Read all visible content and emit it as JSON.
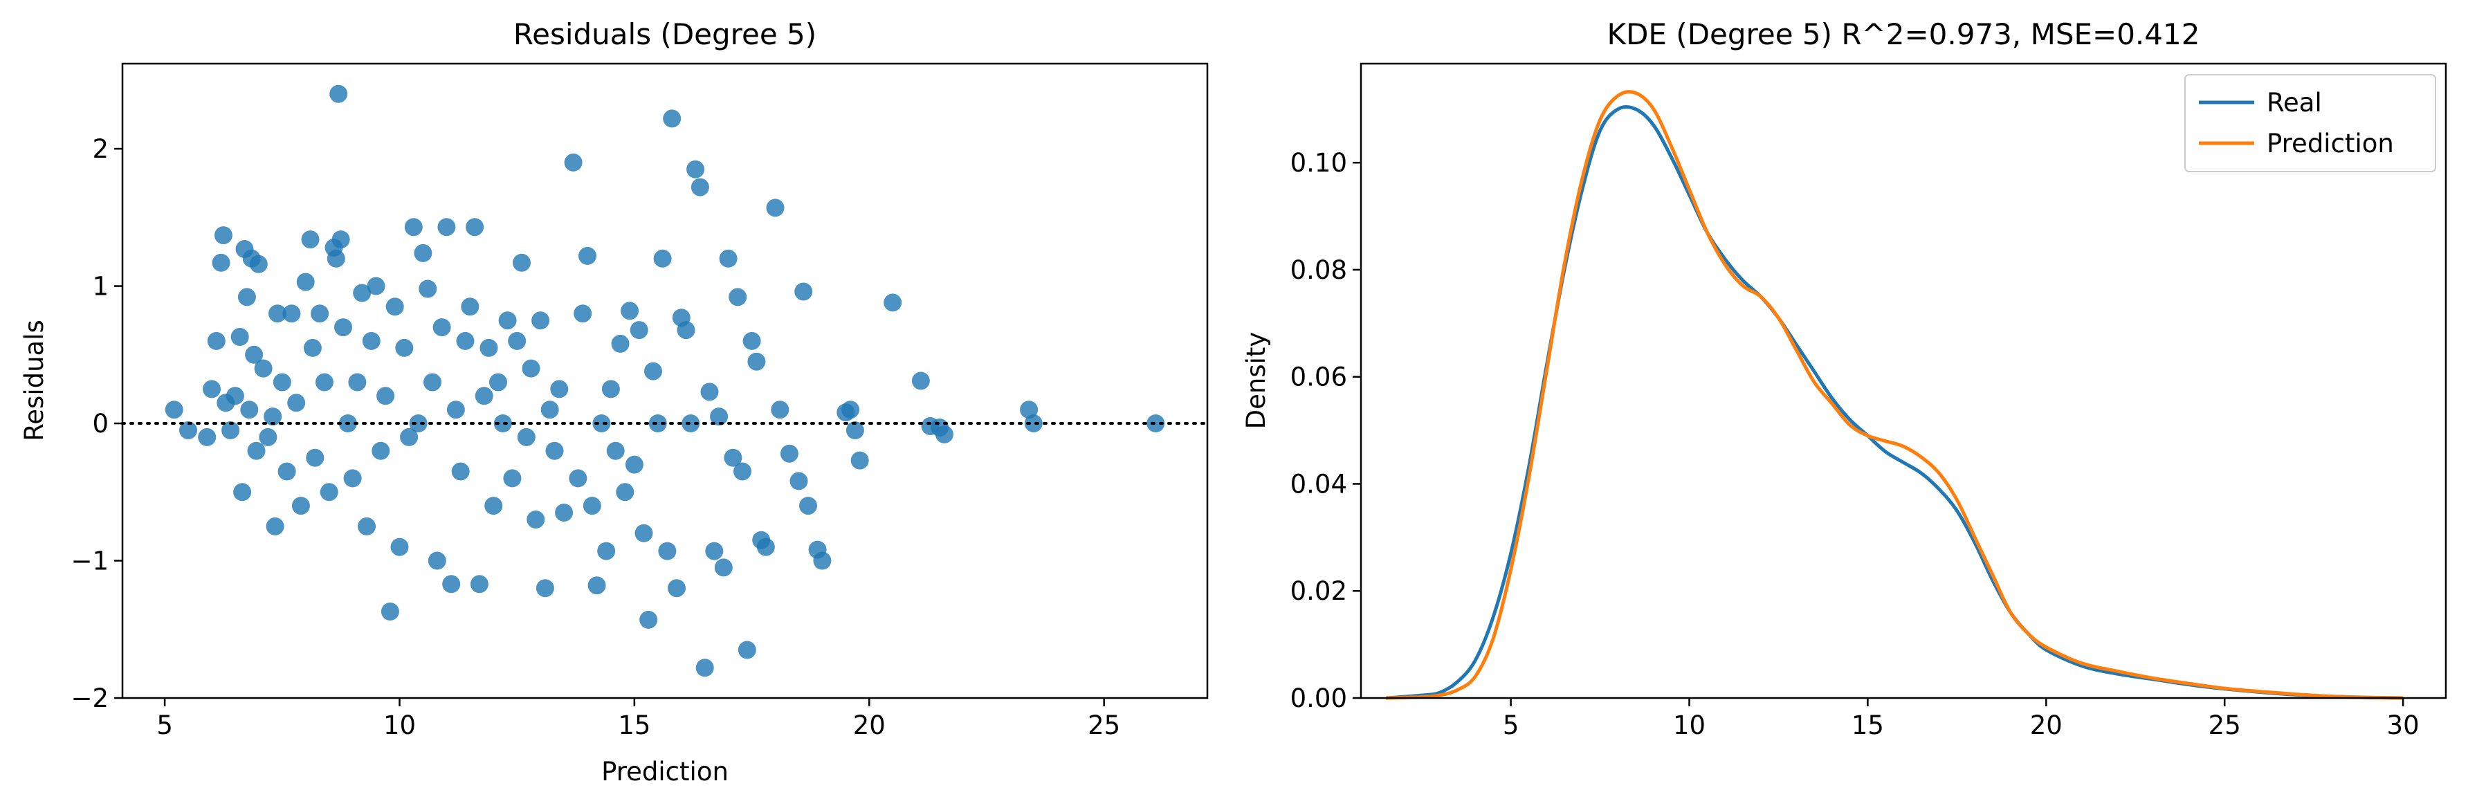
{
  "chart_data": [
    {
      "type": "scatter",
      "title": "Residuals (Degree 5)",
      "xlabel": "Prediction",
      "ylabel": "Residuals",
      "xlim": [
        4.1,
        27.2
      ],
      "ylim": [
        -2.0,
        2.62
      ],
      "xticks": [
        5,
        10,
        15,
        20,
        25
      ],
      "xtick_labels": [
        "5",
        "10",
        "15",
        "20",
        "25"
      ],
      "yticks": [
        -2,
        -1,
        0,
        1,
        2
      ],
      "ytick_labels": [
        "−2",
        "−1",
        "0",
        "1",
        "2"
      ],
      "reference_line": {
        "y": 0,
        "style": "dotted",
        "color": "#000000"
      },
      "marker_color": "#1f77b4",
      "grid": false,
      "points": [
        [
          5.2,
          0.1
        ],
        [
          5.5,
          -0.05
        ],
        [
          5.9,
          -0.1
        ],
        [
          6.0,
          0.25
        ],
        [
          6.1,
          0.6
        ],
        [
          6.2,
          1.17
        ],
        [
          6.25,
          1.37
        ],
        [
          6.3,
          0.15
        ],
        [
          6.4,
          -0.05
        ],
        [
          6.5,
          0.2
        ],
        [
          6.6,
          0.63
        ],
        [
          6.65,
          -0.5
        ],
        [
          6.7,
          1.27
        ],
        [
          6.75,
          0.92
        ],
        [
          6.8,
          0.1
        ],
        [
          6.85,
          1.2
        ],
        [
          6.9,
          0.5
        ],
        [
          6.95,
          -0.2
        ],
        [
          7.0,
          1.16
        ],
        [
          7.1,
          0.4
        ],
        [
          7.2,
          -0.1
        ],
        [
          7.3,
          0.05
        ],
        [
          7.35,
          -0.75
        ],
        [
          7.4,
          0.8
        ],
        [
          7.5,
          0.3
        ],
        [
          7.6,
          -0.35
        ],
        [
          7.7,
          0.8
        ],
        [
          7.8,
          0.15
        ],
        [
          7.9,
          -0.6
        ],
        [
          8.0,
          1.03
        ],
        [
          8.1,
          1.34
        ],
        [
          8.15,
          0.55
        ],
        [
          8.2,
          -0.25
        ],
        [
          8.3,
          0.8
        ],
        [
          8.4,
          0.3
        ],
        [
          8.5,
          -0.5
        ],
        [
          8.6,
          1.28
        ],
        [
          8.65,
          1.2
        ],
        [
          8.7,
          2.4
        ],
        [
          8.75,
          1.34
        ],
        [
          8.8,
          0.7
        ],
        [
          8.9,
          0.0
        ],
        [
          9.0,
          -0.4
        ],
        [
          9.1,
          0.3
        ],
        [
          9.2,
          0.95
        ],
        [
          9.3,
          -0.75
        ],
        [
          9.4,
          0.6
        ],
        [
          9.5,
          1.0
        ],
        [
          9.6,
          -0.2
        ],
        [
          9.7,
          0.2
        ],
        [
          9.8,
          -1.37
        ],
        [
          9.9,
          0.85
        ],
        [
          10.0,
          -0.9
        ],
        [
          10.1,
          0.55
        ],
        [
          10.2,
          -0.1
        ],
        [
          10.3,
          1.43
        ],
        [
          10.4,
          0.0
        ],
        [
          10.5,
          1.24
        ],
        [
          10.6,
          0.98
        ],
        [
          10.7,
          0.3
        ],
        [
          10.8,
          -1.0
        ],
        [
          10.9,
          0.7
        ],
        [
          11.0,
          1.43
        ],
        [
          11.1,
          -1.17
        ],
        [
          11.2,
          0.1
        ],
        [
          11.3,
          -0.35
        ],
        [
          11.4,
          0.6
        ],
        [
          11.5,
          0.85
        ],
        [
          11.6,
          1.43
        ],
        [
          11.7,
          -1.17
        ],
        [
          11.8,
          0.2
        ],
        [
          11.9,
          0.55
        ],
        [
          12.0,
          -0.6
        ],
        [
          12.1,
          0.3
        ],
        [
          12.2,
          0.0
        ],
        [
          12.3,
          0.75
        ],
        [
          12.4,
          -0.4
        ],
        [
          12.5,
          0.6
        ],
        [
          12.6,
          1.17
        ],
        [
          12.7,
          -0.1
        ],
        [
          12.8,
          0.4
        ],
        [
          12.9,
          -0.7
        ],
        [
          13.0,
          0.75
        ],
        [
          13.1,
          -1.2
        ],
        [
          13.2,
          0.1
        ],
        [
          13.3,
          -0.2
        ],
        [
          13.4,
          0.25
        ],
        [
          13.5,
          -0.65
        ],
        [
          13.7,
          1.9
        ],
        [
          13.8,
          -0.4
        ],
        [
          13.9,
          0.8
        ],
        [
          14.0,
          1.22
        ],
        [
          14.1,
          -0.6
        ],
        [
          14.2,
          -1.18
        ],
        [
          14.3,
          0.0
        ],
        [
          14.4,
          -0.93
        ],
        [
          14.5,
          0.25
        ],
        [
          14.6,
          -0.2
        ],
        [
          14.7,
          0.58
        ],
        [
          14.8,
          -0.5
        ],
        [
          14.9,
          0.82
        ],
        [
          15.0,
          -0.3
        ],
        [
          15.1,
          0.68
        ],
        [
          15.2,
          -0.8
        ],
        [
          15.3,
          -1.43
        ],
        [
          15.4,
          0.38
        ],
        [
          15.5,
          0.0
        ],
        [
          15.6,
          1.2
        ],
        [
          15.7,
          -0.93
        ],
        [
          15.8,
          2.22
        ],
        [
          15.9,
          -1.2
        ],
        [
          16.0,
          0.77
        ],
        [
          16.1,
          0.68
        ],
        [
          16.2,
          0.0
        ],
        [
          16.3,
          1.85
        ],
        [
          16.4,
          1.72
        ],
        [
          16.5,
          -1.78
        ],
        [
          16.6,
          0.23
        ],
        [
          16.7,
          -0.93
        ],
        [
          16.8,
          0.05
        ],
        [
          16.9,
          -1.05
        ],
        [
          17.0,
          1.2
        ],
        [
          17.1,
          -0.25
        ],
        [
          17.2,
          0.92
        ],
        [
          17.3,
          -0.35
        ],
        [
          17.4,
          -1.65
        ],
        [
          17.5,
          0.6
        ],
        [
          17.6,
          0.45
        ],
        [
          17.7,
          -0.85
        ],
        [
          17.8,
          -0.9
        ],
        [
          18.0,
          1.57
        ],
        [
          18.1,
          0.1
        ],
        [
          18.3,
          -0.22
        ],
        [
          18.5,
          -0.42
        ],
        [
          18.6,
          0.96
        ],
        [
          18.7,
          -0.6
        ],
        [
          18.9,
          -0.92
        ],
        [
          19.0,
          -1.0
        ],
        [
          19.5,
          0.08
        ],
        [
          19.6,
          0.1
        ],
        [
          19.7,
          -0.05
        ],
        [
          19.8,
          -0.27
        ],
        [
          20.5,
          0.88
        ],
        [
          21.1,
          0.31
        ],
        [
          21.3,
          -0.02
        ],
        [
          21.5,
          -0.03
        ],
        [
          21.6,
          -0.08
        ],
        [
          23.4,
          0.1
        ],
        [
          23.5,
          0.0
        ],
        [
          26.1,
          0.0
        ]
      ]
    },
    {
      "type": "line",
      "title": "KDE (Degree 5) R^2=0.973, MSE=0.412",
      "xlabel": "",
      "ylabel": "Density",
      "xlim": [
        0.8,
        31.2
      ],
      "ylim": [
        0,
        0.1185
      ],
      "xticks": [
        5,
        10,
        15,
        20,
        25,
        30
      ],
      "xtick_labels": [
        "5",
        "10",
        "15",
        "20",
        "25",
        "30"
      ],
      "yticks": [
        0,
        0.02,
        0.04,
        0.06,
        0.08,
        0.1
      ],
      "ytick_labels": [
        "0.00",
        "0.02",
        "0.04",
        "0.06",
        "0.08",
        "0.10"
      ],
      "grid": false,
      "legend_position": "upper right",
      "series": [
        {
          "name": "Real",
          "color": "#1f77b4",
          "x": [
            1.5,
            2.5,
            3.0,
            3.5,
            4.0,
            4.5,
            5.0,
            5.5,
            6.0,
            6.5,
            7.0,
            7.5,
            8.0,
            8.5,
            9.0,
            9.5,
            10.0,
            10.5,
            11.0,
            11.5,
            12.0,
            12.5,
            13.0,
            13.5,
            14.0,
            14.5,
            15.0,
            15.5,
            16.0,
            16.5,
            17.0,
            17.5,
            18.0,
            18.5,
            19.0,
            19.5,
            20.0,
            21.0,
            22.0,
            23.0,
            24.0,
            25.0,
            26.0,
            27.0,
            28.0,
            29.0,
            30.0
          ],
          "y": [
            0.0,
            0.0005,
            0.001,
            0.003,
            0.007,
            0.015,
            0.027,
            0.043,
            0.062,
            0.08,
            0.095,
            0.106,
            0.11,
            0.11,
            0.107,
            0.101,
            0.094,
            0.087,
            0.082,
            0.078,
            0.075,
            0.071,
            0.066,
            0.061,
            0.056,
            0.052,
            0.049,
            0.046,
            0.044,
            0.042,
            0.039,
            0.035,
            0.029,
            0.022,
            0.016,
            0.012,
            0.009,
            0.006,
            0.0045,
            0.0035,
            0.0025,
            0.0017,
            0.0011,
            0.0006,
            0.0003,
            0.0001,
            0.0
          ]
        },
        {
          "name": "Prediction",
          "color": "#ff7f0e",
          "x": [
            1.5,
            2.5,
            3.0,
            3.5,
            4.0,
            4.5,
            5.0,
            5.5,
            6.0,
            6.5,
            7.0,
            7.5,
            8.0,
            8.5,
            9.0,
            9.5,
            10.0,
            10.5,
            11.0,
            11.5,
            12.0,
            12.5,
            13.0,
            13.5,
            14.0,
            14.5,
            15.0,
            15.5,
            16.0,
            16.5,
            17.0,
            17.5,
            18.0,
            18.5,
            19.0,
            19.5,
            20.0,
            21.0,
            22.0,
            23.0,
            24.0,
            25.0,
            26.0,
            27.0,
            28.0,
            29.0,
            30.0
          ],
          "y": [
            0.0,
            0.0002,
            0.0005,
            0.0015,
            0.004,
            0.011,
            0.024,
            0.041,
            0.061,
            0.081,
            0.097,
            0.108,
            0.1125,
            0.113,
            0.11,
            0.103,
            0.095,
            0.087,
            0.081,
            0.077,
            0.075,
            0.071,
            0.065,
            0.059,
            0.055,
            0.051,
            0.049,
            0.048,
            0.047,
            0.045,
            0.042,
            0.037,
            0.03,
            0.023,
            0.016,
            0.012,
            0.0095,
            0.0065,
            0.005,
            0.0037,
            0.0027,
            0.0018,
            0.0012,
            0.0007,
            0.0003,
            0.0001,
            0.0
          ]
        }
      ]
    }
  ]
}
